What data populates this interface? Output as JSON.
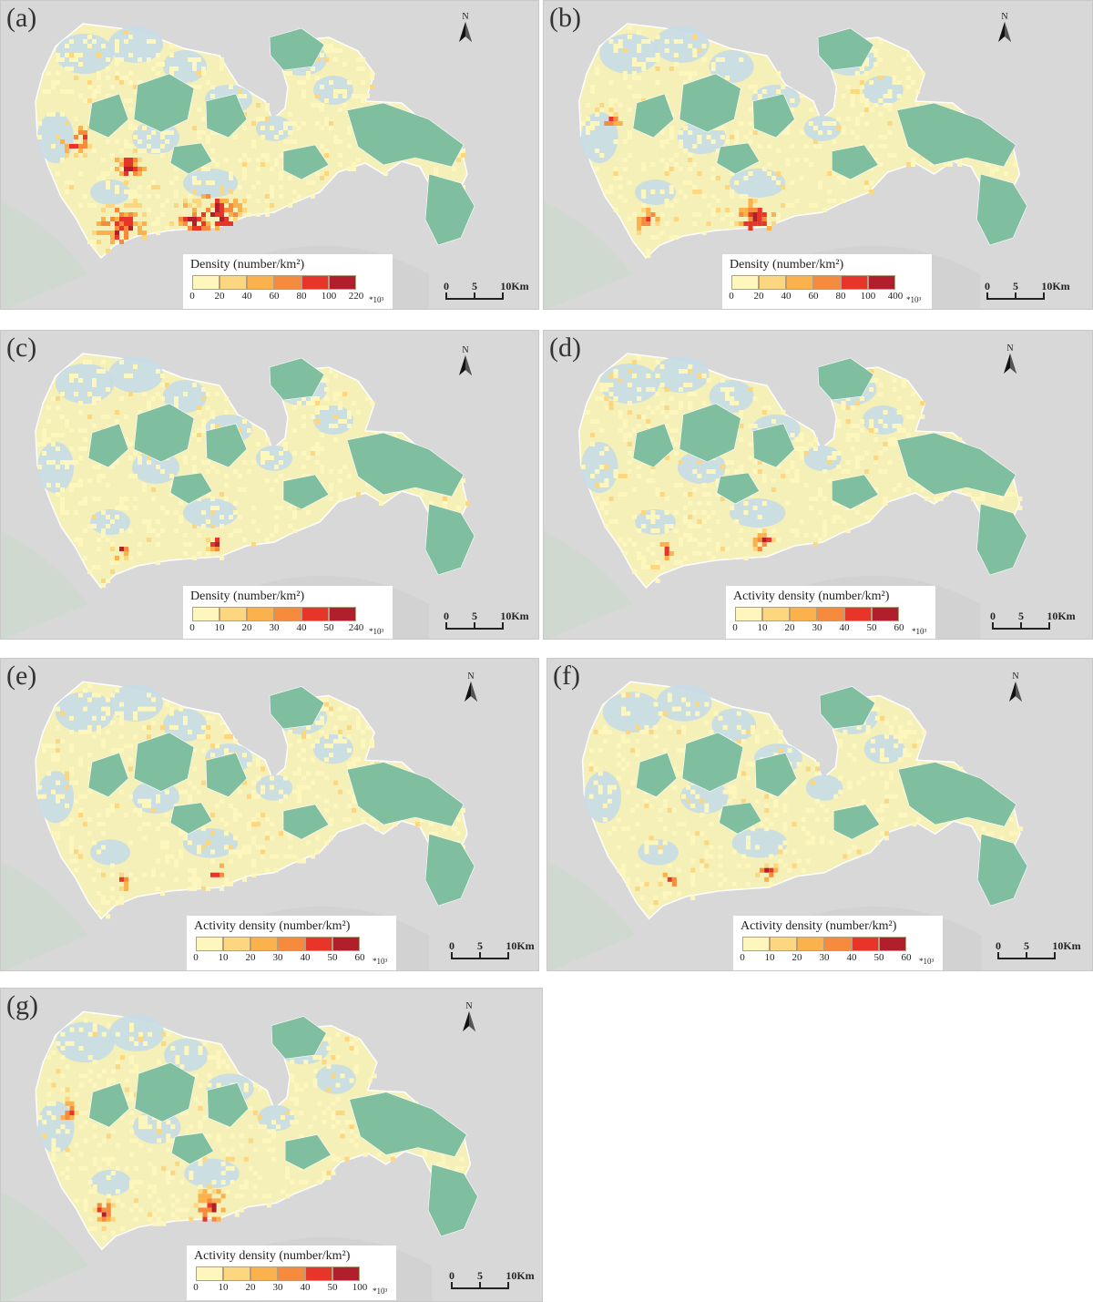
{
  "colors": {
    "background": "#d9d8d8",
    "water": "#c6dbe6",
    "forest": "#7fbf9f",
    "city_base": "#f5efb8",
    "ramp": [
      "#fdf6bd",
      "#fcd77f",
      "#fbb24c",
      "#f68a3d",
      "#e73629",
      "#b01f2b"
    ]
  },
  "north_label": "N",
  "multiplier": "*10³",
  "scale": {
    "ticks": [
      "0",
      "5",
      "10Km"
    ]
  },
  "panels": [
    {
      "id": "a",
      "label": "(a)",
      "legend_title": "Density (number/km²)",
      "ticks": [
        "0",
        "20",
        "40",
        "60",
        "80",
        "100",
        "220"
      ],
      "hotspot_level": "high"
    },
    {
      "id": "b",
      "label": "(b)",
      "legend_title": "Density (number/km²)",
      "ticks": [
        "0",
        "20",
        "40",
        "60",
        "80",
        "100",
        "400"
      ],
      "hotspot_level": "medium"
    },
    {
      "id": "c",
      "label": "(c)",
      "legend_title": "Density (number/km²)",
      "ticks": [
        "0",
        "10",
        "20",
        "30",
        "40",
        "50",
        "240"
      ],
      "hotspot_level": "low"
    },
    {
      "id": "d",
      "label": "(d)",
      "legend_title": "Activity density (number/km²)",
      "ticks": [
        "0",
        "10",
        "20",
        "30",
        "40",
        "50",
        "60"
      ],
      "hotspot_level": "low"
    },
    {
      "id": "e",
      "label": "(e)",
      "legend_title": "Activity density (number/km²)",
      "ticks": [
        "0",
        "10",
        "20",
        "30",
        "40",
        "50",
        "60"
      ],
      "hotspot_level": "low"
    },
    {
      "id": "f",
      "label": "(f)",
      "legend_title": "Activity density (number/km²)",
      "ticks": [
        "0",
        "10",
        "20",
        "30",
        "40",
        "50",
        "60"
      ],
      "hotspot_level": "low"
    },
    {
      "id": "g",
      "label": "(g)",
      "legend_title": "Activity density (number/km²)",
      "ticks": [
        "0",
        "10",
        "20",
        "30",
        "40",
        "50",
        "100"
      ],
      "hotspot_level": "medium"
    }
  ]
}
